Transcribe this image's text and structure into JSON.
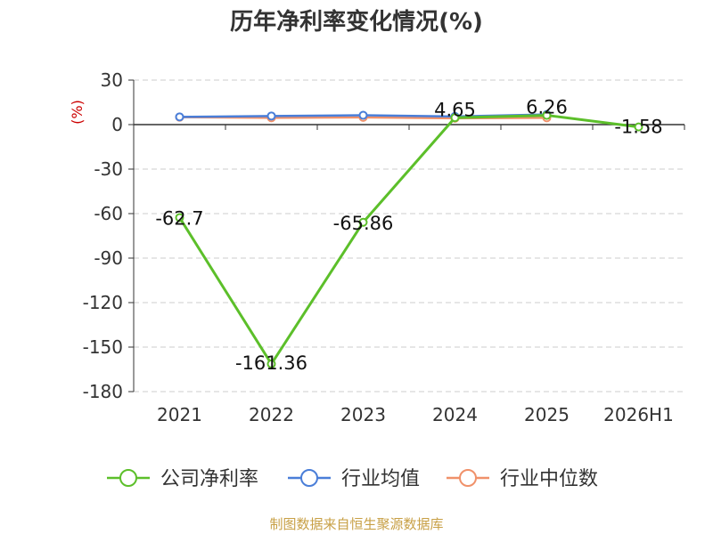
{
  "chart_data": {
    "type": "line",
    "title": "历年净利率变化情况(%)",
    "ylabel": "(%)",
    "xlabel": "",
    "categories": [
      "2021",
      "2022",
      "2023",
      "2024",
      "2025",
      "2026H1"
    ],
    "ylim": [
      -180,
      30
    ],
    "yticks": [
      30,
      0,
      -30,
      -60,
      -90,
      -120,
      -150,
      -180
    ],
    "grid": true,
    "legend_position": "bottom",
    "series": [
      {
        "name": "公司净利率",
        "color": "#5cbf2a",
        "values": [
          -62.7,
          -161.36,
          -65.86,
          4.65,
          6.26,
          -1.58
        ],
        "labels": [
          "-62.7",
          "-161.36",
          "-65.86",
          "4.65",
          "6.26",
          "-1.58"
        ]
      },
      {
        "name": "行业均值",
        "color": "#4a7ed8",
        "values": [
          5.2,
          5.8,
          6.3,
          5.5,
          6.8,
          null
        ]
      },
      {
        "name": "行业中位数",
        "color": "#f0916a",
        "values": [
          5.0,
          4.6,
          4.9,
          4.3,
          4.6,
          null
        ]
      }
    ]
  },
  "source": "制图数据来自恒生聚源数据库",
  "colors": {
    "axis": "#333333",
    "grid": "#cccccc",
    "ylabel": "#cc0000"
  }
}
